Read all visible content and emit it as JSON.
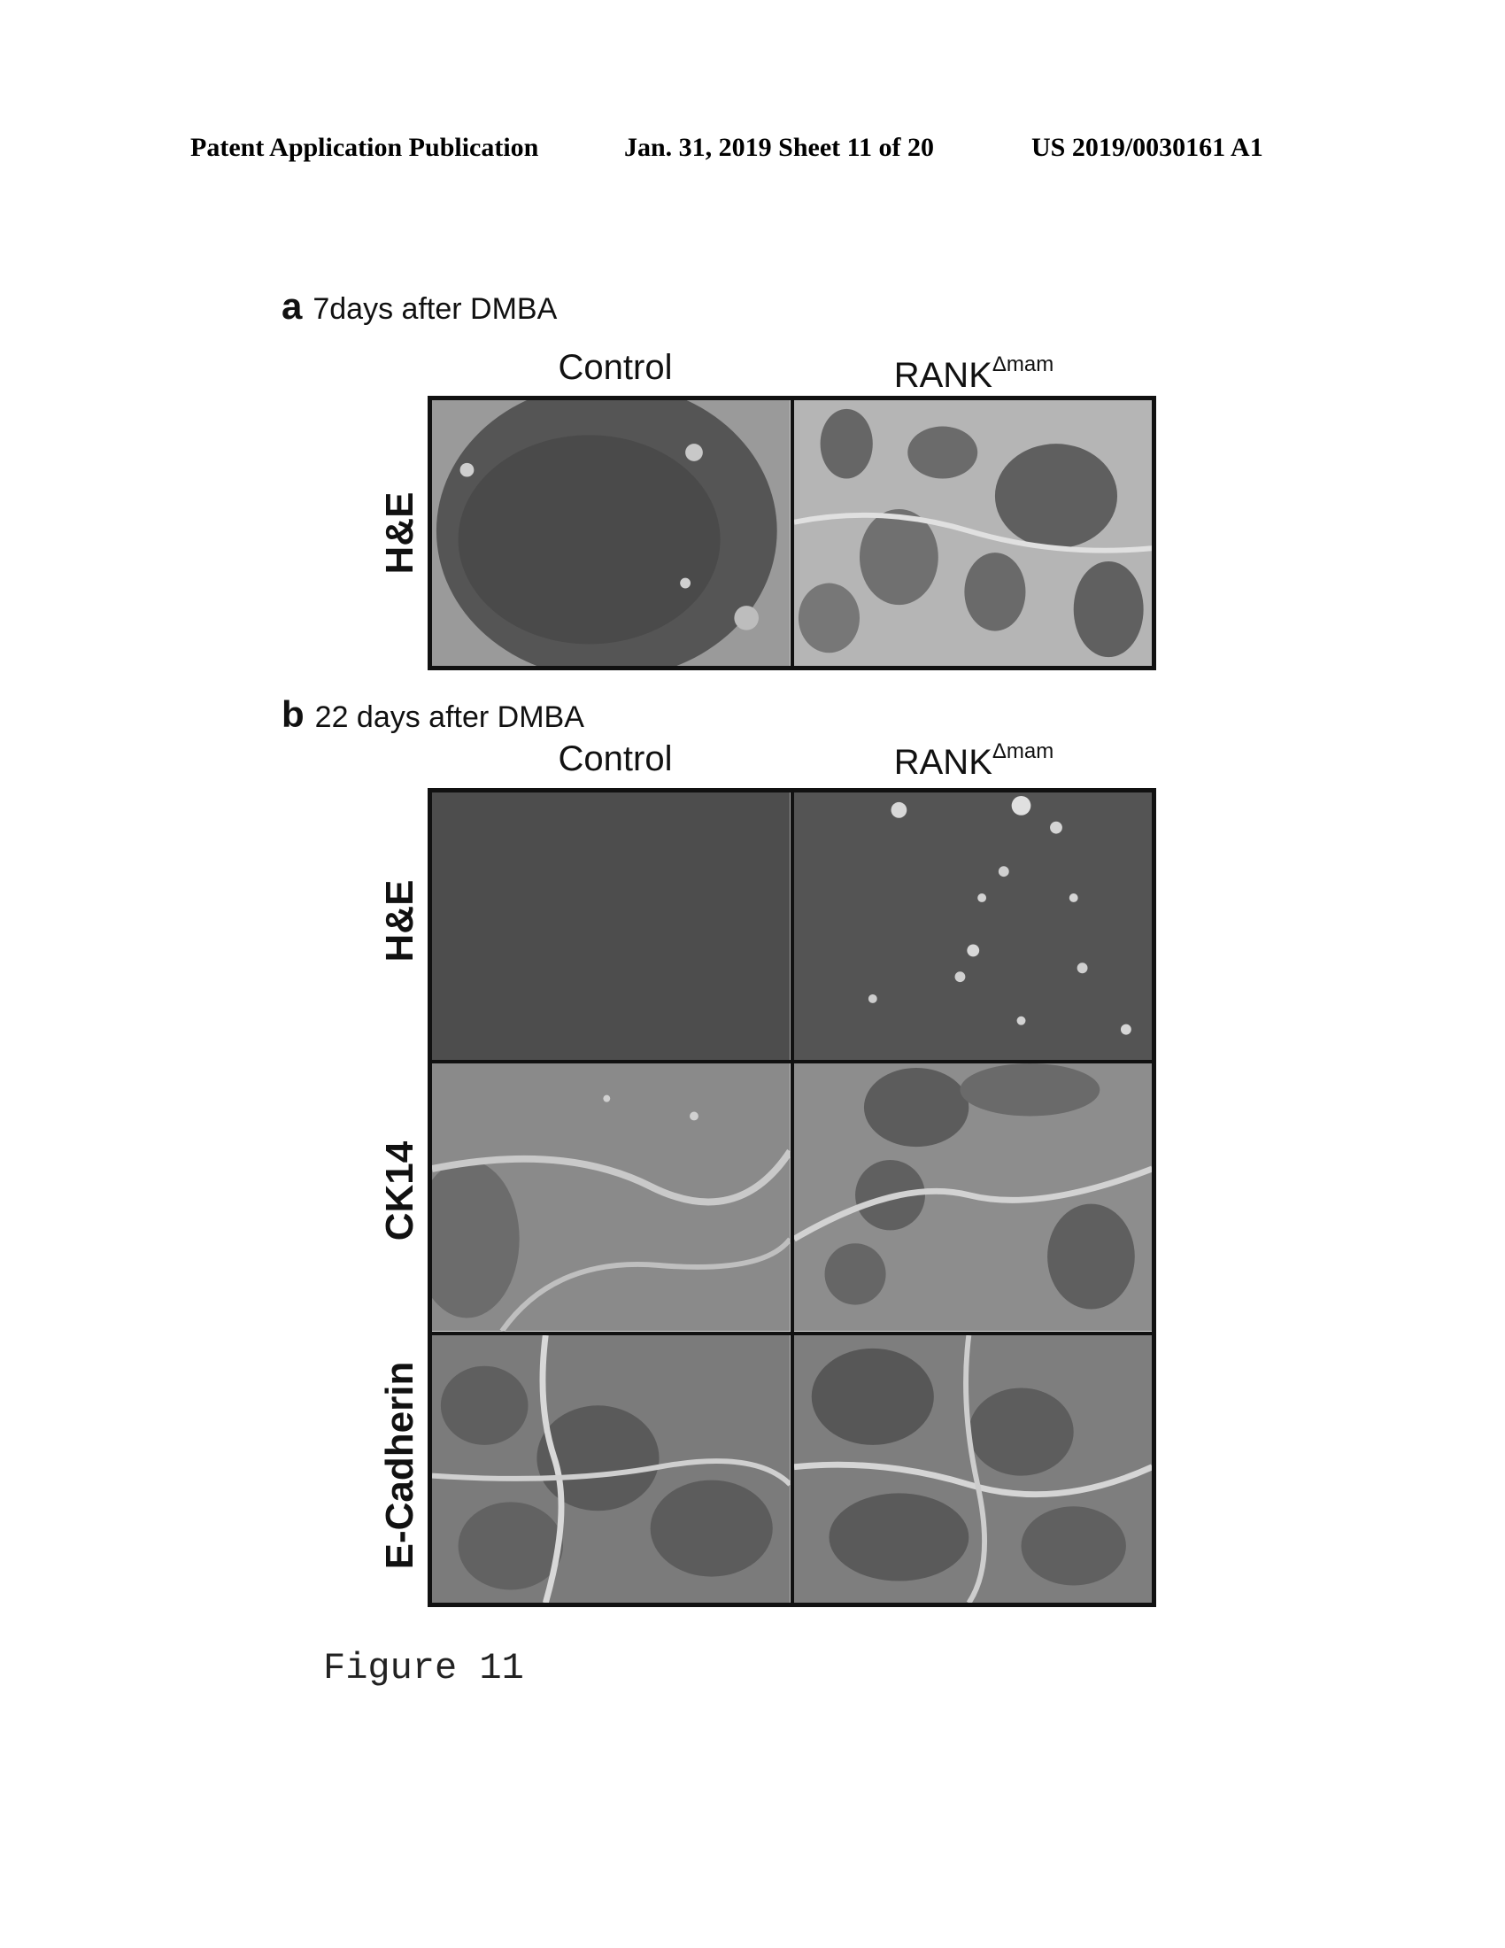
{
  "header": {
    "left": "Patent Application Publication",
    "date_sheet": "Jan. 31, 2019  Sheet 11 of 20",
    "number": "US 2019/0030161 A1"
  },
  "panel_a": {
    "letter": "a",
    "title": "7days after DMBA",
    "columns": [
      {
        "label": "Control",
        "superscript": ""
      },
      {
        "label": "RANK",
        "superscript": "Δmam"
      }
    ],
    "rows": [
      {
        "label": "H&E"
      }
    ]
  },
  "panel_b": {
    "letter": "b",
    "title": "22 days after DMBA",
    "columns": [
      {
        "label": "Control",
        "superscript": ""
      },
      {
        "label": "RANK",
        "superscript": "Δmam"
      }
    ],
    "rows": [
      {
        "label": "H&E"
      },
      {
        "label": "CK14"
      },
      {
        "label": "E-Cadherin"
      }
    ]
  },
  "caption": "Figure 11"
}
